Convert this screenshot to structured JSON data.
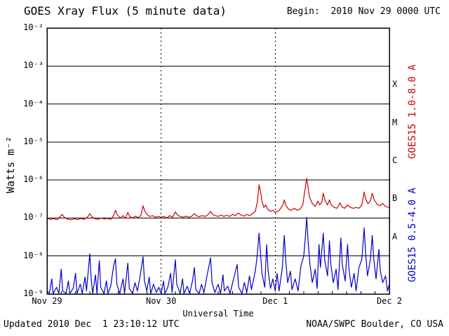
{
  "page": {
    "background": "#ffffff"
  },
  "header": {
    "title": "GOES Xray Flux (5 minute data)",
    "begin": "Begin:  2010 Nov 29 0000 UTC"
  },
  "footer": {
    "updated": "Updated 2010 Dec  1 23:10:12 UTC",
    "credit": "NOAA/SWPC Boulder, CO USA"
  },
  "chart_data": {
    "type": "line",
    "title": "GOES Xray Flux (5 minute data)",
    "xlabel": "Universal Time",
    "ylabel": "Watts m⁻²",
    "x_unit": "hours since 2010 Nov 29 0000 UTC",
    "xlim_hours": [
      0,
      72
    ],
    "ylog_range": [
      -9,
      -2
    ],
    "grid": {
      "horizontal_decades": true,
      "vertical_day_lines_dotted": true,
      "legend_position": "right-rotated"
    },
    "axis_color": "#000000",
    "day_line_hours": [
      24,
      48
    ],
    "minor_tick_step_hours": 3,
    "x_ticks": [
      {
        "hour": 0,
        "label": "Nov 29"
      },
      {
        "hour": 24,
        "label": "Nov 30"
      },
      {
        "hour": 48,
        "label": "Dec 1"
      },
      {
        "hour": 72,
        "label": "Dec 2"
      }
    ],
    "y_ticks": [
      {
        "exp": -2,
        "label": "10⁻²"
      },
      {
        "exp": -3,
        "label": "10⁻³"
      },
      {
        "exp": -4,
        "label": "10⁻⁴"
      },
      {
        "exp": -5,
        "label": "10⁻⁵"
      },
      {
        "exp": -6,
        "label": "10⁻⁶"
      },
      {
        "exp": -7,
        "label": "10⁻⁷"
      },
      {
        "exp": -8,
        "label": "10⁻⁸"
      },
      {
        "exp": -9,
        "label": "10⁻⁹"
      }
    ],
    "flare_classes": [
      {
        "label": "X",
        "log_center": -3.5
      },
      {
        "label": "M",
        "log_center": -4.5
      },
      {
        "label": "C",
        "log_center": -5.5
      },
      {
        "label": "B",
        "log_center": -6.5
      },
      {
        "label": "A",
        "log_center": -7.5
      }
    ],
    "series": [
      {
        "name": "GOES15 1.0-8.0 A",
        "color": "#cc0000",
        "points": [
          [
            0,
            1e-07
          ],
          [
            0.7,
            9.2e-08
          ],
          [
            1.4,
            9.6e-08
          ],
          [
            2.1,
            9e-08
          ],
          [
            2.8,
            1.1e-07
          ],
          [
            3.2,
            1.25e-07
          ],
          [
            3.6,
            1.05e-07
          ],
          [
            4.3,
            9.3e-08
          ],
          [
            5,
            9e-08
          ],
          [
            5.7,
            9.5e-08
          ],
          [
            6.4,
            9.1e-08
          ],
          [
            7.1,
            9.7e-08
          ],
          [
            7.8,
            9.2e-08
          ],
          [
            8.5,
            1.05e-07
          ],
          [
            9,
            1.3e-07
          ],
          [
            9.4,
            1.1e-07
          ],
          [
            10,
            9.6e-08
          ],
          [
            10.7,
            9.2e-08
          ],
          [
            11.4,
            1e-07
          ],
          [
            12,
            9.4e-08
          ],
          [
            12.7,
            9.8e-08
          ],
          [
            13.4,
            9.2e-08
          ],
          [
            14,
            1.15e-07
          ],
          [
            14.4,
            1.6e-07
          ],
          [
            14.8,
            1.2e-07
          ],
          [
            15.4,
            1e-07
          ],
          [
            16,
            1.15e-07
          ],
          [
            16.5,
            9.8e-08
          ],
          [
            17,
            1.4e-07
          ],
          [
            17.4,
            1.1e-07
          ],
          [
            18,
            1e-07
          ],
          [
            18.6,
            1.12e-07
          ],
          [
            19.2,
            1.02e-07
          ],
          [
            19.8,
            1.2e-07
          ],
          [
            20.2,
            2.1e-07
          ],
          [
            20.6,
            1.5e-07
          ],
          [
            21,
            1.25e-07
          ],
          [
            21.6,
            1.1e-07
          ],
          [
            22.2,
            1.15e-07
          ],
          [
            22.8,
            1.05e-07
          ],
          [
            23.4,
            1.1e-07
          ],
          [
            24,
            1.05e-07
          ],
          [
            24.6,
            1.1e-07
          ],
          [
            25.2,
            1e-07
          ],
          [
            25.8,
            1.15e-07
          ],
          [
            26.4,
            1.05e-07
          ],
          [
            27,
            1.45e-07
          ],
          [
            27.4,
            1.2e-07
          ],
          [
            28,
            1.1e-07
          ],
          [
            28.6,
            1.05e-07
          ],
          [
            29.2,
            1.12e-07
          ],
          [
            29.8,
            1.05e-07
          ],
          [
            30.4,
            1.1e-07
          ],
          [
            31,
            1.3e-07
          ],
          [
            31.4,
            1.15e-07
          ],
          [
            32,
            1.08e-07
          ],
          [
            32.6,
            1.15e-07
          ],
          [
            33.2,
            1.1e-07
          ],
          [
            33.8,
            1.2e-07
          ],
          [
            34.4,
            1.5e-07
          ],
          [
            34.8,
            1.25e-07
          ],
          [
            35.4,
            1.15e-07
          ],
          [
            36,
            1.1e-07
          ],
          [
            36.6,
            1.2e-07
          ],
          [
            37.2,
            1.1e-07
          ],
          [
            37.8,
            1.18e-07
          ],
          [
            38.4,
            1.1e-07
          ],
          [
            39,
            1.25e-07
          ],
          [
            39.6,
            1.15e-07
          ],
          [
            40.2,
            1.35e-07
          ],
          [
            40.8,
            1.2e-07
          ],
          [
            41.4,
            1.12e-07
          ],
          [
            42,
            1.25e-07
          ],
          [
            42.6,
            1.15e-07
          ],
          [
            43.2,
            1.3e-07
          ],
          [
            43.8,
            1.5e-07
          ],
          [
            44.2,
            2.5e-07
          ],
          [
            44.6,
            7.5e-07
          ],
          [
            44.9,
            5e-07
          ],
          [
            45.2,
            2.8e-07
          ],
          [
            45.6,
            1.9e-07
          ],
          [
            46,
            2.2e-07
          ],
          [
            46.4,
            1.7e-07
          ],
          [
            47,
            1.5e-07
          ],
          [
            47.5,
            1.6e-07
          ],
          [
            48,
            1.4e-07
          ],
          [
            48.5,
            1.5e-07
          ],
          [
            49,
            1.7e-07
          ],
          [
            49.6,
            2.2e-07
          ],
          [
            49.9,
            3e-07
          ],
          [
            50.2,
            2.2e-07
          ],
          [
            50.8,
            1.7e-07
          ],
          [
            51.4,
            1.6e-07
          ],
          [
            52,
            1.8e-07
          ],
          [
            52.6,
            1.6e-07
          ],
          [
            53.2,
            1.7e-07
          ],
          [
            53.8,
            2.2e-07
          ],
          [
            54.3,
            6e-07
          ],
          [
            54.6,
            1.1e-06
          ],
          [
            54.9,
            6.5e-07
          ],
          [
            55.2,
            3.5e-07
          ],
          [
            55.8,
            2.4e-07
          ],
          [
            56.4,
            2e-07
          ],
          [
            57,
            2.8e-07
          ],
          [
            57.3,
            2.2e-07
          ],
          [
            57.8,
            2.6e-07
          ],
          [
            58.1,
            4.5e-07
          ],
          [
            58.5,
            2.8e-07
          ],
          [
            59,
            2.2e-07
          ],
          [
            59.4,
            3e-07
          ],
          [
            59.8,
            2.2e-07
          ],
          [
            60.4,
            1.9e-07
          ],
          [
            61,
            1.8e-07
          ],
          [
            61.6,
            2.5e-07
          ],
          [
            62,
            2e-07
          ],
          [
            62.6,
            1.8e-07
          ],
          [
            63.2,
            2.2e-07
          ],
          [
            63.8,
            1.9e-07
          ],
          [
            64.4,
            1.8e-07
          ],
          [
            65,
            1.9e-07
          ],
          [
            65.6,
            1.8e-07
          ],
          [
            66.2,
            2.2e-07
          ],
          [
            66.7,
            4.8e-07
          ],
          [
            67,
            3.2e-07
          ],
          [
            67.5,
            2.4e-07
          ],
          [
            68,
            2.8e-07
          ],
          [
            68.4,
            4.5e-07
          ],
          [
            68.8,
            3e-07
          ],
          [
            69.4,
            2.3e-07
          ],
          [
            70,
            2.1e-07
          ],
          [
            70.6,
            2.4e-07
          ],
          [
            71.2,
            2e-07
          ],
          [
            72,
            1.9e-07
          ]
        ]
      },
      {
        "name": "GOES15 0.5-4.0 A",
        "color": "#0000cc",
        "points": [
          [
            0,
            1.2e-09
          ],
          [
            0.5,
            1e-09
          ],
          [
            1,
            2.5e-09
          ],
          [
            1.3,
            1e-09
          ],
          [
            2,
            1.5e-09
          ],
          [
            2.5,
            1e-09
          ],
          [
            3,
            4.5e-09
          ],
          [
            3.3,
            1.2e-09
          ],
          [
            4,
            1e-09
          ],
          [
            4.5,
            2.2e-09
          ],
          [
            4.8,
            1e-09
          ],
          [
            5.5,
            1.4e-09
          ],
          [
            6,
            3.5e-09
          ],
          [
            6.3,
            1e-09
          ],
          [
            7,
            1.8e-09
          ],
          [
            7.4,
            1e-09
          ],
          [
            8,
            2.8e-09
          ],
          [
            8.3,
            1.2e-09
          ],
          [
            9,
            1.15e-08
          ],
          [
            9.3,
            2.5e-09
          ],
          [
            9.6,
            1e-09
          ],
          [
            10.2,
            3.2e-09
          ],
          [
            10.5,
            1e-09
          ],
          [
            11,
            7.5e-09
          ],
          [
            11.3,
            1.5e-09
          ],
          [
            12,
            1e-09
          ],
          [
            12.5,
            2.2e-09
          ],
          [
            12.8,
            1e-09
          ],
          [
            13.4,
            1.6e-09
          ],
          [
            14,
            5.5e-09
          ],
          [
            14.4,
            8.5e-09
          ],
          [
            14.7,
            1.8e-09
          ],
          [
            15.3,
            1e-09
          ],
          [
            16,
            2.5e-09
          ],
          [
            16.3,
            1e-09
          ],
          [
            17,
            6.5e-09
          ],
          [
            17.3,
            1.4e-09
          ],
          [
            18,
            1e-09
          ],
          [
            18.5,
            2e-09
          ],
          [
            19,
            1.2e-09
          ],
          [
            19.6,
            3e-09
          ],
          [
            20.2,
            9.5e-09
          ],
          [
            20.5,
            2.2e-09
          ],
          [
            21,
            1.2e-09
          ],
          [
            21.5,
            2.8e-09
          ],
          [
            21.8,
            1e-09
          ],
          [
            22.4,
            1.8e-09
          ],
          [
            23,
            1.1e-09
          ],
          [
            23.5,
            1.5e-09
          ],
          [
            24,
            1e-09
          ],
          [
            24.5,
            2.2e-09
          ],
          [
            24.8,
            1e-09
          ],
          [
            25.4,
            1.5e-09
          ],
          [
            26,
            3.5e-09
          ],
          [
            26.3,
            1.1e-09
          ],
          [
            27,
            8e-09
          ],
          [
            27.3,
            1.8e-09
          ],
          [
            28,
            1e-09
          ],
          [
            28.5,
            2.5e-09
          ],
          [
            28.8,
            1e-09
          ],
          [
            29.5,
            1.6e-09
          ],
          [
            30,
            1e-09
          ],
          [
            30.6,
            2.2e-09
          ],
          [
            31,
            5e-09
          ],
          [
            31.3,
            1.3e-09
          ],
          [
            32,
            1e-09
          ],
          [
            32.5,
            1.8e-09
          ],
          [
            33,
            1.1e-09
          ],
          [
            33.6,
            2.8e-09
          ],
          [
            34.4,
            9e-09
          ],
          [
            34.7,
            2e-09
          ],
          [
            35.3,
            1.1e-09
          ],
          [
            36,
            1.8e-09
          ],
          [
            36.5,
            1e-09
          ],
          [
            37,
            3.2e-09
          ],
          [
            37.3,
            1.2e-09
          ],
          [
            38,
            1.6e-09
          ],
          [
            38.5,
            1e-09
          ],
          [
            39.2,
            2.4e-09
          ],
          [
            40,
            6e-09
          ],
          [
            40.3,
            1.5e-09
          ],
          [
            41,
            1e-09
          ],
          [
            41.5,
            2e-09
          ],
          [
            42,
            1.1e-09
          ],
          [
            42.6,
            3e-09
          ],
          [
            43,
            1.3e-09
          ],
          [
            43.8,
            4e-09
          ],
          [
            44.2,
            1e-08
          ],
          [
            44.6,
            4e-08
          ],
          [
            44.9,
            1.2e-08
          ],
          [
            45.2,
            3.5e-09
          ],
          [
            45.8,
            1.5e-09
          ],
          [
            46.2,
            2e-08
          ],
          [
            46.5,
            4e-09
          ],
          [
            47,
            1.4e-09
          ],
          [
            47.5,
            2.5e-09
          ],
          [
            48,
            1.2e-09
          ],
          [
            48.4,
            3.5e-09
          ],
          [
            48.8,
            1.2e-09
          ],
          [
            49.5,
            5e-09
          ],
          [
            49.9,
            3.5e-08
          ],
          [
            50.2,
            8e-09
          ],
          [
            50.6,
            2e-09
          ],
          [
            51.2,
            4e-09
          ],
          [
            51.5,
            1.3e-09
          ],
          [
            52.2,
            2.5e-09
          ],
          [
            52.8,
            1.2e-09
          ],
          [
            53.4,
            5.5e-09
          ],
          [
            54,
            1e-08
          ],
          [
            54.4,
            4e-08
          ],
          [
            54.6,
            1.05e-07
          ],
          [
            54.9,
            2.5e-08
          ],
          [
            55.3,
            6e-09
          ],
          [
            55.8,
            2e-09
          ],
          [
            56.4,
            4.5e-09
          ],
          [
            56.8,
            1.4e-09
          ],
          [
            57.2,
            2e-08
          ],
          [
            57.5,
            5e-09
          ],
          [
            58.1,
            4e-08
          ],
          [
            58.4,
            8e-09
          ],
          [
            59,
            3e-09
          ],
          [
            59.4,
            2.5e-08
          ],
          [
            59.7,
            6e-09
          ],
          [
            60.2,
            2e-09
          ],
          [
            60.8,
            4.5e-09
          ],
          [
            61.2,
            1.3e-09
          ],
          [
            61.8,
            3e-08
          ],
          [
            62.1,
            6e-09
          ],
          [
            62.7,
            2.2e-09
          ],
          [
            63.2,
            2e-08
          ],
          [
            63.5,
            4.5e-09
          ],
          [
            64,
            1.5e-09
          ],
          [
            64.6,
            3.5e-09
          ],
          [
            65,
            1.2e-09
          ],
          [
            65.6,
            5e-09
          ],
          [
            66.2,
            8e-09
          ],
          [
            66.7,
            5.5e-08
          ],
          [
            67,
            1.2e-08
          ],
          [
            67.4,
            3e-09
          ],
          [
            68,
            8e-09
          ],
          [
            68.4,
            3.5e-08
          ],
          [
            68.7,
            9e-09
          ],
          [
            69.2,
            2.5e-09
          ],
          [
            69.8,
            1.5e-08
          ],
          [
            70.1,
            4e-09
          ],
          [
            70.6,
            2e-09
          ],
          [
            71.2,
            3e-09
          ],
          [
            71.6,
            1.2e-09
          ],
          [
            72,
            1.8e-09
          ]
        ]
      }
    ]
  }
}
